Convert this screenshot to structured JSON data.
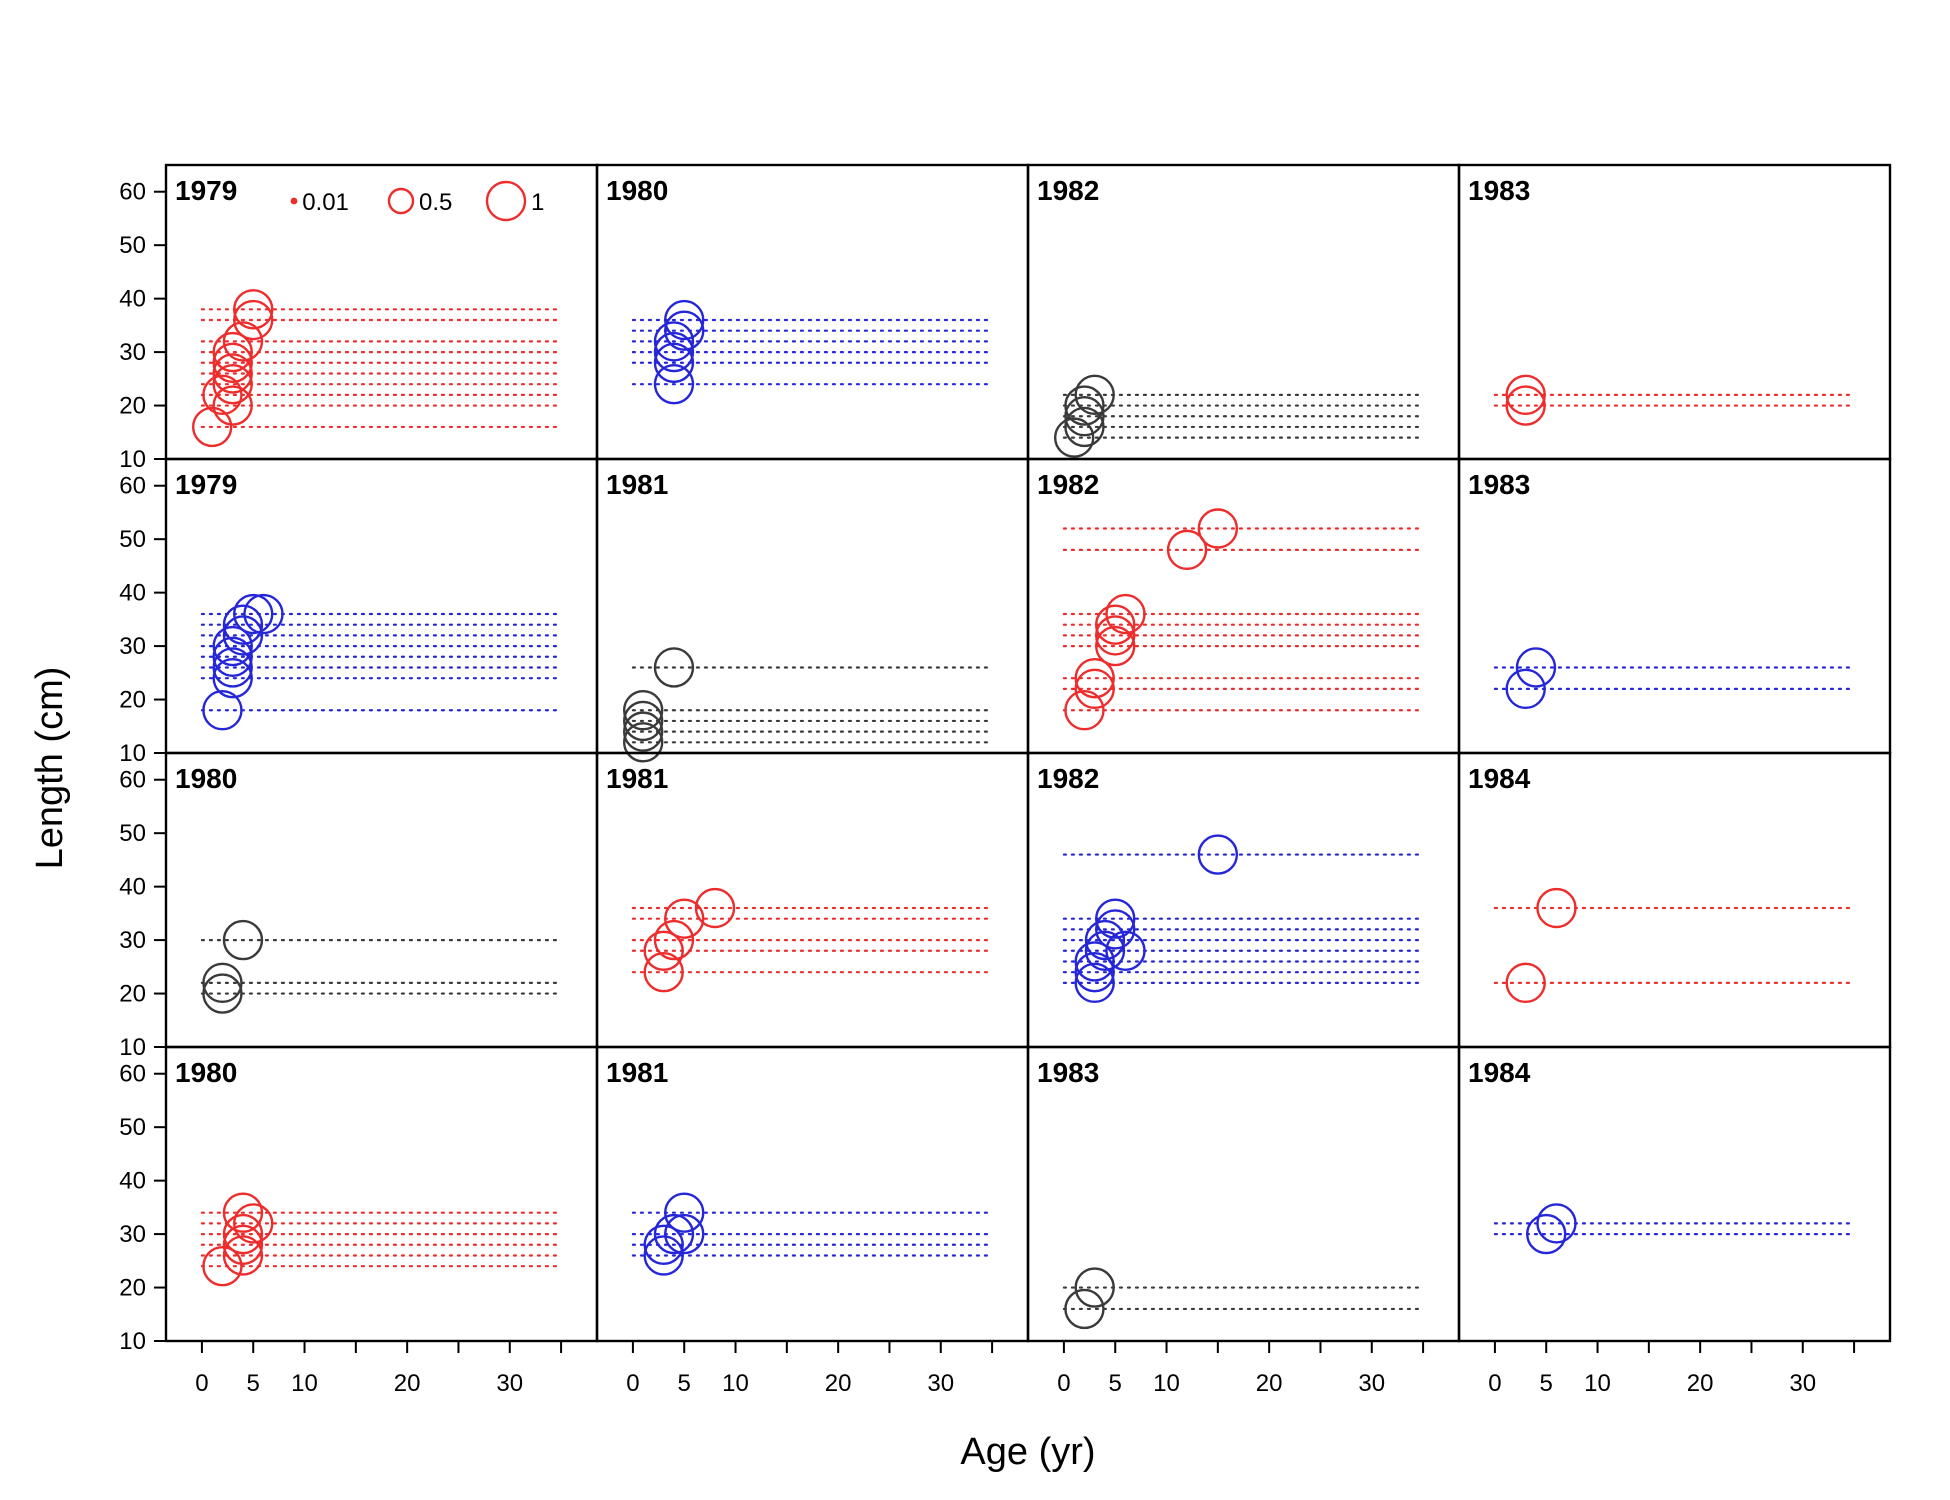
{
  "colors": {
    "red": "#EE2C2C",
    "blue": "#2626D9",
    "gray": "#3A3A3A"
  },
  "chart_data": {
    "type": "scatter",
    "title": "",
    "xlabel": "Age (yr)",
    "ylabel": "Length (cm)",
    "xlim": [
      -3.5,
      38.5
    ],
    "ylim": [
      10,
      65
    ],
    "x_tick_values": [
      0,
      5,
      10,
      15,
      20,
      25,
      30,
      35
    ],
    "x_tick_labels": [
      "0",
      "5",
      "10",
      "",
      "20",
      "",
      "30",
      ""
    ],
    "y_tick_values": [
      10,
      20,
      30,
      40,
      50,
      60
    ],
    "y_tick_labels": [
      "10",
      "20",
      "30",
      "40",
      "50",
      "60"
    ],
    "legend": {
      "position": "top-left of first panel",
      "values": [
        0.01,
        0.5,
        1
      ],
      "labels": [
        "0.01",
        "0.5",
        "1"
      ]
    },
    "layout": {
      "rows": 4,
      "cols": 4
    },
    "panels": [
      {
        "label": "1979",
        "color": "red",
        "lines": [
          16,
          20,
          22,
          24,
          26,
          28,
          30,
          32,
          36,
          38
        ],
        "points": [
          [
            1,
            16
          ],
          [
            2,
            22
          ],
          [
            3,
            20
          ],
          [
            3,
            24
          ],
          [
            3,
            26
          ],
          [
            3,
            28
          ],
          [
            3,
            30
          ],
          [
            4,
            32
          ],
          [
            5,
            36
          ],
          [
            5,
            38
          ]
        ]
      },
      {
        "label": "1980",
        "color": "blue",
        "lines": [
          24,
          28,
          30,
          32,
          34,
          36
        ],
        "points": [
          [
            4,
            24
          ],
          [
            4,
            28
          ],
          [
            4,
            30
          ],
          [
            4,
            32
          ],
          [
            5,
            34
          ],
          [
            5,
            36
          ]
        ]
      },
      {
        "label": "1982",
        "color": "gray",
        "lines": [
          14,
          16,
          18,
          20,
          22
        ],
        "points": [
          [
            1,
            14
          ],
          [
            2,
            16
          ],
          [
            2,
            18
          ],
          [
            2,
            20
          ],
          [
            3,
            22
          ]
        ]
      },
      {
        "label": "1983",
        "color": "red",
        "lines": [
          20,
          22
        ],
        "points": [
          [
            3,
            20
          ],
          [
            3,
            22
          ]
        ]
      },
      {
        "label": "1979",
        "color": "blue",
        "lines": [
          18,
          24,
          26,
          28,
          30,
          32,
          34,
          36
        ],
        "points": [
          [
            2,
            18
          ],
          [
            3,
            24
          ],
          [
            3,
            26
          ],
          [
            3,
            28
          ],
          [
            3,
            30
          ],
          [
            4,
            32
          ],
          [
            4,
            34
          ],
          [
            5,
            36
          ],
          [
            6,
            36
          ]
        ]
      },
      {
        "label": "1981",
        "color": "gray",
        "lines": [
          12,
          14,
          16,
          18,
          26
        ],
        "points": [
          [
            1,
            12
          ],
          [
            1,
            14
          ],
          [
            1,
            16
          ],
          [
            1,
            18
          ],
          [
            4,
            26
          ]
        ]
      },
      {
        "label": "1982",
        "color": "red",
        "lines": [
          18,
          22,
          24,
          30,
          32,
          34,
          36,
          48,
          52
        ],
        "points": [
          [
            2,
            18
          ],
          [
            3,
            22
          ],
          [
            3,
            24
          ],
          [
            5,
            30
          ],
          [
            5,
            32
          ],
          [
            5,
            34
          ],
          [
            6,
            36
          ],
          [
            12,
            48
          ],
          [
            15,
            52
          ]
        ]
      },
      {
        "label": "1983",
        "color": "blue",
        "lines": [
          22,
          26
        ],
        "points": [
          [
            3,
            22
          ],
          [
            4,
            26
          ]
        ]
      },
      {
        "label": "1980",
        "color": "gray",
        "lines": [
          20,
          22,
          30
        ],
        "points": [
          [
            2,
            20
          ],
          [
            2,
            22
          ],
          [
            4,
            30
          ]
        ]
      },
      {
        "label": "1981",
        "color": "red",
        "lines": [
          24,
          28,
          30,
          34,
          36
        ],
        "points": [
          [
            3,
            24
          ],
          [
            3,
            28
          ],
          [
            4,
            30
          ],
          [
            5,
            34
          ],
          [
            8,
            36
          ]
        ]
      },
      {
        "label": "1982",
        "color": "blue",
        "lines": [
          22,
          24,
          26,
          28,
          30,
          32,
          34,
          46
        ],
        "points": [
          [
            3,
            22
          ],
          [
            3,
            24
          ],
          [
            3,
            26
          ],
          [
            4,
            28
          ],
          [
            4,
            30
          ],
          [
            5,
            32
          ],
          [
            5,
            34
          ],
          [
            6,
            28
          ],
          [
            15,
            46
          ]
        ]
      },
      {
        "label": "1984",
        "color": "red",
        "lines": [
          22,
          36
        ],
        "points": [
          [
            3,
            22
          ],
          [
            6,
            36
          ]
        ]
      },
      {
        "label": "1980",
        "color": "red",
        "lines": [
          24,
          26,
          28,
          30,
          32,
          34
        ],
        "points": [
          [
            2,
            24
          ],
          [
            4,
            26
          ],
          [
            4,
            28
          ],
          [
            4,
            30
          ],
          [
            5,
            32
          ],
          [
            4,
            34
          ]
        ]
      },
      {
        "label": "1981",
        "color": "blue",
        "lines": [
          26,
          28,
          30,
          34
        ],
        "points": [
          [
            3,
            26
          ],
          [
            3,
            28
          ],
          [
            4,
            30
          ],
          [
            5,
            30
          ],
          [
            5,
            34
          ]
        ]
      },
      {
        "label": "1983",
        "color": "gray",
        "lines": [
          16,
          20
        ],
        "points": [
          [
            2,
            16
          ],
          [
            3,
            20
          ]
        ]
      },
      {
        "label": "1984",
        "color": "blue",
        "lines": [
          30,
          32
        ],
        "points": [
          [
            5,
            30
          ],
          [
            6,
            32
          ]
        ]
      }
    ]
  }
}
